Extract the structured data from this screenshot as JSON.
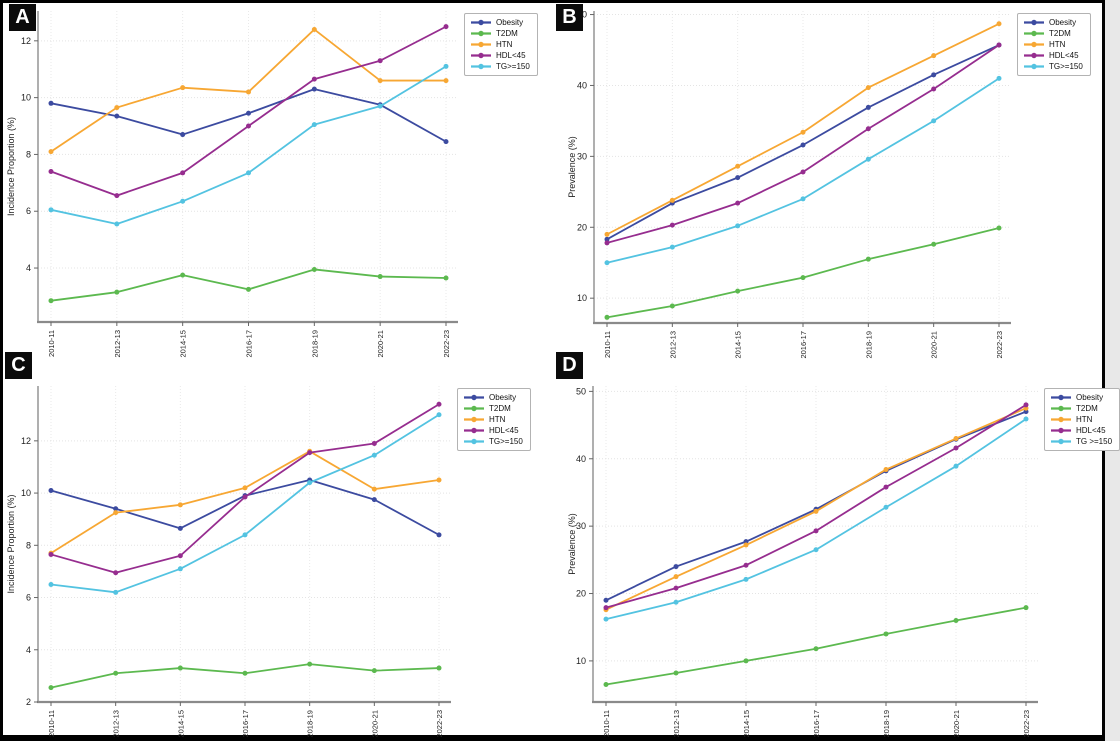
{
  "figure": {
    "background": "#ffffff",
    "frame_color": "#000000",
    "panel_labels": [
      "A",
      "B",
      "C",
      "D"
    ]
  },
  "chart_data": [
    {
      "panel_label": "A",
      "type": "line",
      "title": "",
      "xlabel": "",
      "ylabel": "Incidence Proportion (%)",
      "categories": [
        "2010-11",
        "2012-13",
        "2014-15",
        "2016-17",
        "2018-19",
        "2020-21",
        "2022-23"
      ],
      "yticks": [
        4,
        6,
        8,
        10,
        12
      ],
      "ylim": [
        2.1,
        13.05
      ],
      "grid": true,
      "legend_position": "upper right",
      "series": [
        {
          "name": "Obesity",
          "color": "#3c4ba0",
          "values": [
            9.8,
            9.35,
            8.7,
            9.45,
            10.3,
            9.75,
            8.45
          ]
        },
        {
          "name": "T2DM",
          "color": "#5cb94f",
          "values": [
            2.85,
            3.15,
            3.75,
            3.25,
            3.95,
            3.7,
            3.65
          ]
        },
        {
          "name": "HTN",
          "color": "#f7a733",
          "values": [
            8.1,
            9.65,
            10.35,
            10.2,
            12.4,
            10.6,
            10.6
          ]
        },
        {
          "name": "HDL<45",
          "color": "#962d8f",
          "values": [
            7.4,
            6.55,
            7.35,
            9.0,
            10.65,
            11.3,
            12.5
          ]
        },
        {
          "name": "TG>=150",
          "color": "#53c3e1",
          "values": [
            6.05,
            5.55,
            6.35,
            7.35,
            9.05,
            9.7,
            11.1
          ]
        }
      ]
    },
    {
      "panel_label": "B",
      "type": "line",
      "title": "",
      "xlabel": "",
      "ylabel": "Prevalence (%)",
      "categories": [
        "2010-11",
        "2012-13",
        "2014-15",
        "2016-17",
        "2018-19",
        "2020-21",
        "2022-23"
      ],
      "yticks": [
        10,
        20,
        30,
        40,
        50
      ],
      "ylim": [
        6.5,
        50.5
      ],
      "grid": true,
      "legend_position": "upper right",
      "series": [
        {
          "name": "Obesity",
          "color": "#3c4ba0",
          "values": [
            18.3,
            23.4,
            27.0,
            31.6,
            36.9,
            41.5,
            45.7
          ]
        },
        {
          "name": "T2DM",
          "color": "#5cb94f",
          "values": [
            7.3,
            8.9,
            11.0,
            12.9,
            15.5,
            17.6,
            19.9
          ]
        },
        {
          "name": "HTN",
          "color": "#f7a733",
          "values": [
            19.0,
            23.8,
            28.6,
            33.4,
            39.7,
            44.2,
            48.7
          ]
        },
        {
          "name": "HDL<45",
          "color": "#962d8f",
          "values": [
            17.8,
            20.3,
            23.4,
            27.8,
            33.9,
            39.5,
            45.7
          ]
        },
        {
          "name": "TG>=150",
          "color": "#53c3e1",
          "values": [
            15.0,
            17.2,
            20.2,
            24.0,
            29.6,
            35.0,
            41.0
          ]
        }
      ]
    },
    {
      "panel_label": "C",
      "type": "line",
      "title": "",
      "xlabel": "",
      "ylabel": "Incidence Proportion (%)",
      "categories": [
        "2010-11",
        "2012-13",
        "2014-15",
        "2016-17",
        "2018-19",
        "2020-21",
        "2022-23"
      ],
      "yticks": [
        2,
        4,
        6,
        8,
        10,
        12
      ],
      "ylim": [
        2.0,
        14.1
      ],
      "grid": true,
      "legend_position": "upper right",
      "series": [
        {
          "name": "Obesity",
          "color": "#3c4ba0",
          "values": [
            10.1,
            9.4,
            8.65,
            9.9,
            10.5,
            9.75,
            8.4
          ]
        },
        {
          "name": "T2DM",
          "color": "#5cb94f",
          "values": [
            2.55,
            3.1,
            3.3,
            3.1,
            3.45,
            3.2,
            3.3
          ]
        },
        {
          "name": "HTN",
          "color": "#f7a733",
          "values": [
            7.7,
            9.25,
            9.55,
            10.2,
            11.6,
            10.15,
            10.5
          ]
        },
        {
          "name": "HDL<45",
          "color": "#962d8f",
          "values": [
            7.65,
            6.95,
            7.6,
            9.85,
            11.55,
            11.9,
            13.4
          ]
        },
        {
          "name": "TG>=150",
          "color": "#53c3e1",
          "values": [
            6.5,
            6.2,
            7.1,
            8.4,
            10.4,
            11.45,
            13.0
          ]
        }
      ]
    },
    {
      "panel_label": "D",
      "type": "line",
      "title": "",
      "xlabel": "",
      "ylabel": "Prevalence (%)",
      "categories": [
        "2010-11",
        "2012-13",
        "2014-15",
        "2016-17",
        "2018-19",
        "2020-21",
        "2022-23"
      ],
      "yticks": [
        10,
        20,
        30,
        40,
        50
      ],
      "ylim": [
        3.9,
        50.8
      ],
      "grid": true,
      "legend_position": "upper right",
      "series": [
        {
          "name": "Obesity",
          "color": "#3c4ba0",
          "values": [
            19.0,
            24.0,
            27.7,
            32.5,
            38.2,
            42.9,
            47.0
          ]
        },
        {
          "name": "T2DM",
          "color": "#5cb94f",
          "values": [
            6.5,
            8.2,
            10.0,
            11.8,
            14.0,
            16.0,
            17.9
          ]
        },
        {
          "name": "HTN",
          "color": "#f7a733",
          "values": [
            17.6,
            22.5,
            27.2,
            32.2,
            38.4,
            43.0,
            47.5
          ]
        },
        {
          "name": "HDL<45",
          "color": "#962d8f",
          "values": [
            17.9,
            20.8,
            24.2,
            29.3,
            35.8,
            41.6,
            48.0
          ]
        },
        {
          "name": "TG >=150",
          "color": "#53c3e1",
          "values": [
            16.2,
            18.7,
            22.1,
            26.5,
            32.8,
            38.9,
            45.9
          ]
        }
      ]
    }
  ]
}
